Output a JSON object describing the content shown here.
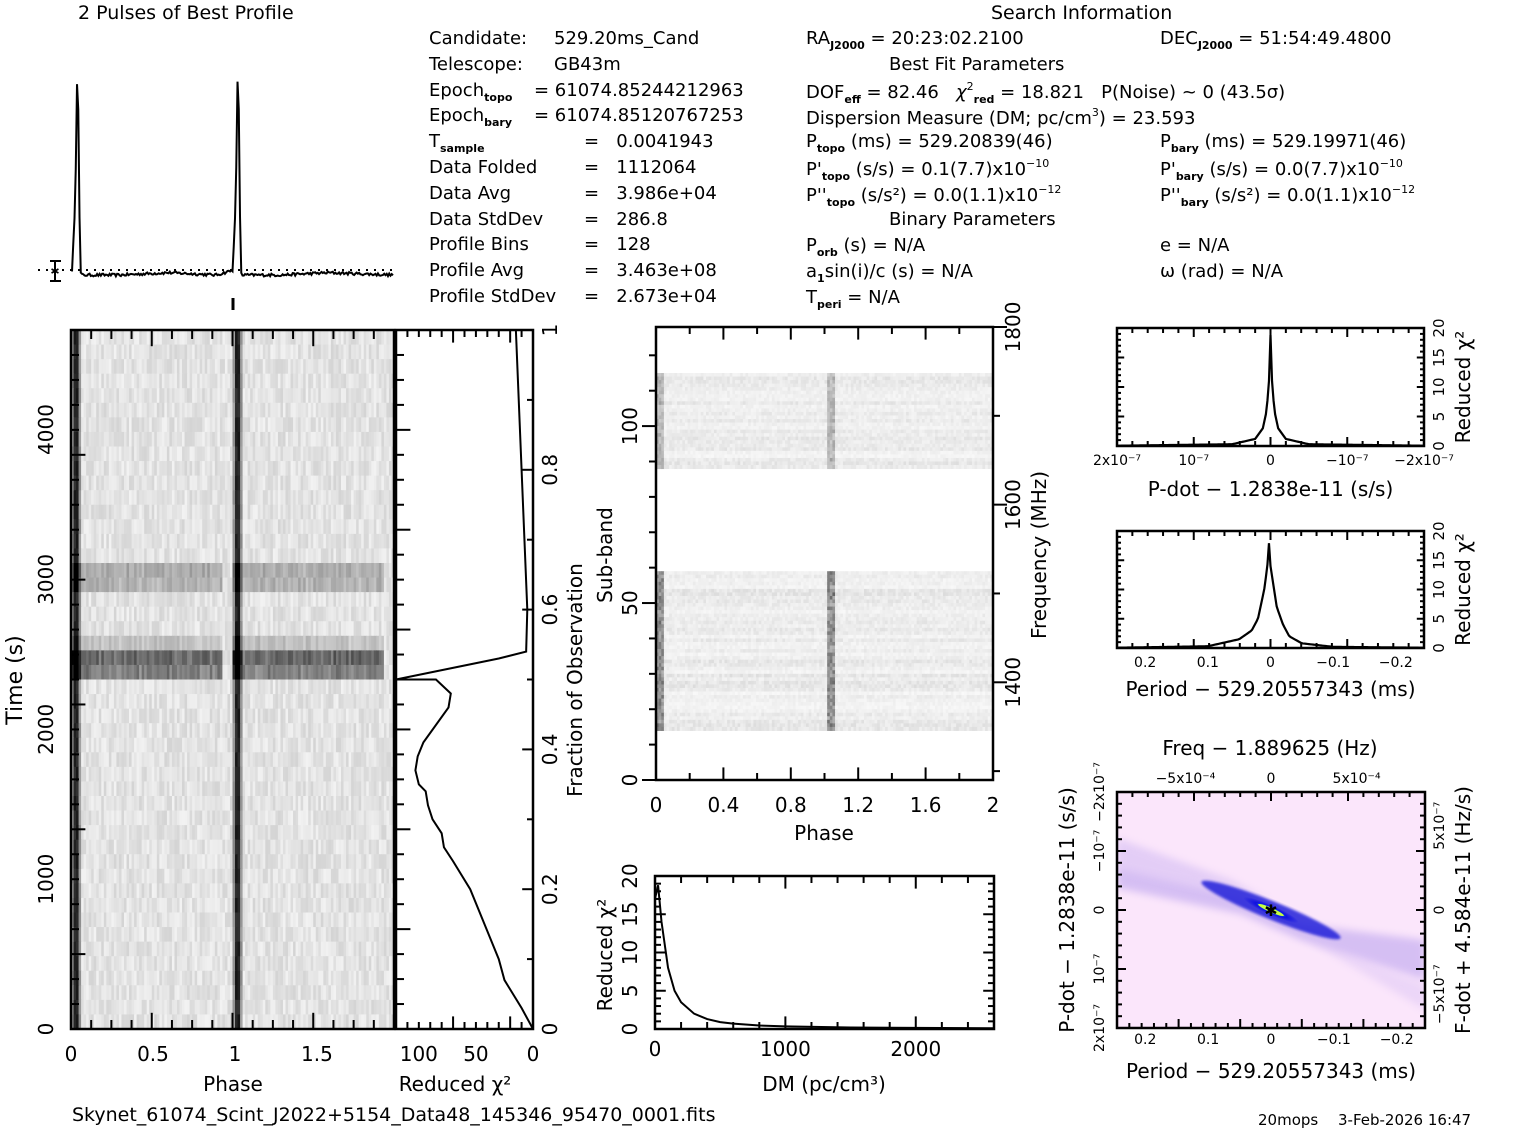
{
  "header": {
    "profile_title": "2 Pulses of Best Profile",
    "search_title": "Search Information",
    "best_fit_title": "Best Fit Parameters",
    "binary_title": "Binary Parameters"
  },
  "candidate_info": [
    {
      "label": "Candidate:",
      "value": "529.20ms_Cand"
    },
    {
      "label": "Telescope:",
      "value": "GB43m"
    },
    {
      "label": "Epoch",
      "sub": "topo",
      "value": "= 61074.85244212963"
    },
    {
      "label": "Epoch",
      "sub": "bary",
      "value": "= 61074.85120767253"
    },
    {
      "label": "T",
      "sub": "sample",
      "value": "=   0.0041943"
    },
    {
      "label": "Data Folded",
      "value": "=   1112064"
    },
    {
      "label": "Data Avg",
      "value": "=   3.986e+04"
    },
    {
      "label": "Data StdDev",
      "value": "=   286.8"
    },
    {
      "label": "Profile Bins",
      "value": "=   128"
    },
    {
      "label": "Profile Avg",
      "value": "=   3.463e+08"
    },
    {
      "label": "Profile StdDev",
      "value": "=   2.673e+04"
    }
  ],
  "search_info": {
    "ra_label": "RA",
    "ra_sub": "J2000",
    "ra_value": "= 20:23:02.2100",
    "dec_label": "DEC",
    "dec_sub": "J2000",
    "dec_value": "= 51:54:49.4800",
    "dof_label": "DOF",
    "dof_sub": "eff",
    "dof_value": "= 82.46",
    "chi_label": "χ",
    "chi_sub": "red",
    "chi_value": "= 18.821",
    "pnoise": "P(Noise) ~ 0    (43.5σ)",
    "dm_text": "Dispersion Measure (DM; pc/cm",
    "dm_value": ") = 23.593",
    "p_topo_label": "P",
    "p_topo_sub": "topo",
    "p_topo_value": "(ms) =  529.20839(46)",
    "pd_topo_label": "P'",
    "pd_topo_sub": "topo",
    "pd_topo_value": "(s/s) =  0.1(7.7)x10",
    "pd_topo_exp": "−10",
    "pdd_topo_label": "P''",
    "pdd_topo_sub": "topo",
    "pdd_topo_value": "(s/s²) = 0.0(1.1)x10",
    "pdd_topo_exp": "−12",
    "p_bary_label": "P",
    "p_bary_sub": "bary",
    "p_bary_value": "(ms) =  529.19971(46)",
    "pd_bary_label": "P'",
    "pd_bary_sub": "bary",
    "pd_bary_value": "(s/s) = 0.0(7.7)x10",
    "pd_bary_exp": "−10",
    "pdd_bary_label": "P''",
    "pdd_bary_sub": "bary",
    "pdd_bary_value": "(s/s²) = 0.0(1.1)x10",
    "pdd_bary_exp": "−12",
    "porb_label": "P",
    "porb_sub": "orb",
    "porb_value": "(s) = N/A",
    "a1_label": "a",
    "a1_sub": "1",
    "a1_value": "sin(i)/c (s) = N/A",
    "tperi_label": "T",
    "tperi_sub": "peri",
    "tperi_value": "= N/A",
    "e_value": "e = N/A",
    "omega_value": "ω (rad) = N/A"
  },
  "footer": {
    "filename": "Skynet_61074_Scint_J2022+5154_Data48_145346_95470_0001.fits",
    "user": "20mops",
    "timestamp": "3-Feb-2026 16:47"
  },
  "chart_data": [
    {
      "id": "profile",
      "type": "line",
      "title": "2 Pulses of Best Profile",
      "x": [
        0.0,
        0.02,
        0.035,
        0.045,
        0.055,
        0.07,
        0.3,
        0.6,
        0.9,
        1.0,
        1.02,
        1.035,
        1.045,
        1.055,
        1.07,
        1.3,
        1.6,
        2.0
      ],
      "y": [
        0.02,
        0.3,
        1.0,
        0.3,
        0.0,
        0.0,
        0.0,
        0.01,
        0.0,
        0.02,
        0.3,
        1.0,
        0.3,
        0.0,
        0.0,
        0.0,
        0.01,
        0.0
      ],
      "xlim": [
        0,
        2
      ],
      "ylim": [
        0,
        1
      ]
    },
    {
      "id": "time-phase",
      "type": "heatmap",
      "xlabel": "Phase",
      "ylabel": "Time (s)",
      "xticks": [
        "0",
        "0.5",
        "1",
        "1.5"
      ],
      "yticks": [
        "0",
        "1000",
        "2000",
        "3000",
        "4000"
      ],
      "xlim": [
        0,
        2
      ],
      "ylim": [
        0,
        4664
      ],
      "pulse_phases": [
        0.03,
        1.03
      ],
      "dark_rows_time": [
        2440,
        2380,
        3080,
        3020
      ]
    },
    {
      "id": "chi-vs-time",
      "type": "line",
      "xlabel": "Reduced χ²",
      "ylabel": "Fraction of Observation",
      "xticks": [
        "100",
        "50",
        "0"
      ],
      "yticks": [
        "0",
        "0.2",
        "0.4",
        "0.6",
        "0.8",
        "1"
      ],
      "xlim": [
        120,
        0
      ],
      "ylim": [
        0,
        1
      ],
      "x": [
        0,
        10,
        25,
        30,
        40,
        55,
        70,
        78,
        80,
        88,
        92,
        94,
        100,
        103,
        101,
        96,
        74,
        72,
        85,
        92,
        108,
        120,
        30,
        6,
        5,
        15
      ],
      "y": [
        0,
        0.03,
        0.07,
        0.1,
        0.14,
        0.2,
        0.24,
        0.26,
        0.28,
        0.3,
        0.32,
        0.34,
        0.35,
        0.37,
        0.39,
        0.41,
        0.46,
        0.48,
        0.5,
        0.5,
        0.5,
        0.5,
        0.53,
        0.54,
        0.6,
        1.0
      ]
    },
    {
      "id": "subband-phase",
      "type": "heatmap",
      "xlabel": "Phase",
      "ylabel": "Sub-band",
      "y2label": "Frequency (MHz)",
      "xticks": [
        "0",
        "0.4",
        "0.8",
        "1.2",
        "1.6",
        "2"
      ],
      "yticks": [
        "0",
        "50",
        "100"
      ],
      "y2ticks": [
        "1400",
        "1600",
        "1800"
      ],
      "xlim": [
        0,
        2
      ],
      "ylim": [
        0,
        128
      ],
      "bands_with_data": [
        [
          14,
          59
        ],
        [
          88,
          115
        ]
      ]
    },
    {
      "id": "chi-vs-dm",
      "type": "line",
      "xlabel": "DM (pc/cm³)",
      "ylabel": "Reduced χ²",
      "xticks": [
        "0",
        "1000",
        "2000"
      ],
      "yticks": [
        "0",
        "5",
        "10",
        "15",
        "20"
      ],
      "xlim": [
        0,
        2600
      ],
      "ylim": [
        0,
        20
      ],
      "x": [
        0,
        23.6,
        50,
        100,
        150,
        200,
        300,
        400,
        500,
        600,
        800,
        1000,
        1500,
        2000,
        2600
      ],
      "y": [
        17,
        18.8,
        14,
        8,
        5,
        3.5,
        2,
        1.3,
        0.9,
        0.7,
        0.45,
        0.35,
        0.2,
        0.15,
        0.1
      ]
    },
    {
      "id": "chi-vs-pdot",
      "type": "line",
      "xlabel": "P-dot − 1.2838e-11 (s/s)",
      "ylabel": "Reduced χ²",
      "xticks": [
        "2x10⁻⁷",
        "10⁻⁷",
        "0",
        "−10⁻⁷",
        "−2x10⁻⁷"
      ],
      "yticks": [
        "0",
        "5",
        "10",
        "15",
        "20"
      ],
      "xlim": [
        2e-07,
        -2e-07
      ],
      "ylim": [
        0,
        20
      ],
      "x": [
        2e-07,
        5e-08,
        2e-08,
        1e-08,
        5e-09,
        2e-09,
        0,
        -2e-09,
        -5e-09,
        -1e-08,
        -2e-08,
        -5e-08,
        -2e-07
      ],
      "y": [
        0.05,
        0.3,
        1.2,
        3,
        6,
        11,
        18.8,
        11,
        6,
        3,
        1.2,
        0.3,
        0.05
      ]
    },
    {
      "id": "chi-vs-period",
      "type": "line",
      "xlabel": "Period − 529.20557343 (ms)",
      "ylabel": "Reduced χ²",
      "xticks": [
        "0.2",
        "0.1",
        "0",
        "−0.1",
        "−0.2"
      ],
      "yticks": [
        "0",
        "5",
        "10",
        "15",
        "20"
      ],
      "xlim": [
        0.245,
        -0.245
      ],
      "ylim": [
        0,
        20
      ],
      "x": [
        0.245,
        0.1,
        0.05,
        0.03,
        0.02,
        0.01,
        0.005,
        0.003,
        0.0,
        -0.01,
        -0.02,
        -0.03,
        -0.05,
        -0.1,
        -0.245
      ],
      "y": [
        0.05,
        0.3,
        1.5,
        3,
        5,
        10,
        14,
        18.8,
        14,
        7,
        4,
        2,
        0.8,
        0.2,
        0.05
      ]
    },
    {
      "id": "p-pdot",
      "type": "heatmap",
      "title": "Freq − 1.889625 (Hz)",
      "xlabel": "Period − 529.20557343 (ms)",
      "ylabel": "P-dot − 1.2838e-11 (s/s)",
      "y2label": "F-dot + 4.584e-11 (Hz/s)",
      "xticks": [
        "0.2",
        "0.1",
        "0",
        "−0.1",
        "−0.2"
      ],
      "x2ticks": [
        "−5x10⁻⁴",
        "0",
        "5x10⁻⁴"
      ],
      "yticks": [
        "2x10⁻⁷",
        "10⁻⁷",
        "0",
        "−10⁻⁷",
        "−2x10⁻⁷"
      ],
      "y2ticks": [
        "−5x10⁻⁷",
        "0",
        "5x10⁻⁷"
      ],
      "xlim": [
        0.245,
        -0.245
      ],
      "ylim": [
        2e-07,
        -2e-07
      ],
      "best": [
        0,
        0
      ],
      "colors": {
        "background": "#fbe6fb",
        "low": "#c9a8f0",
        "mid": "#1a1ae6",
        "high": "#00d8d8",
        "peak": "#c8ff40"
      }
    }
  ]
}
